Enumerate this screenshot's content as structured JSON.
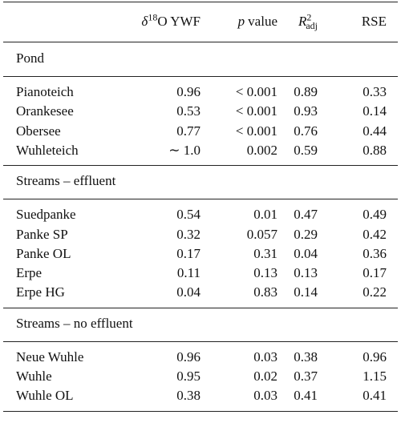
{
  "table": {
    "header": {
      "col1": {
        "italic": "δ",
        "sup": "18",
        "rest": "O YWF"
      },
      "col2": {
        "italic": "p",
        "rest": "value"
      },
      "col3": {
        "italic": "R",
        "sup": "2",
        "sub": "adj"
      },
      "col4": "RSE"
    },
    "groups": [
      {
        "title": "Pond",
        "rows": [
          [
            "Pianoteich",
            "0.96",
            "< 0.001",
            "0.89",
            "0.33"
          ],
          [
            "Orankesee",
            "0.53",
            "< 0.001",
            "0.93",
            "0.14"
          ],
          [
            "Obersee",
            "0.77",
            "< 0.001",
            "0.76",
            "0.44"
          ],
          [
            "Wuhleteich",
            "∼ 1.0",
            "0.002",
            "0.59",
            "0.88"
          ]
        ]
      },
      {
        "title": "Streams – effluent",
        "rows": [
          [
            "Suedpanke",
            "0.54",
            "0.01",
            "0.47",
            "0.49"
          ],
          [
            "Panke SP",
            "0.32",
            "0.057",
            "0.29",
            "0.42"
          ],
          [
            "Panke OL",
            "0.17",
            "0.31",
            "0.04",
            "0.36"
          ],
          [
            "Erpe",
            "0.11",
            "0.13",
            "0.13",
            "0.17"
          ],
          [
            "Erpe HG",
            "0.04",
            "0.83",
            "0.14",
            "0.22"
          ]
        ]
      },
      {
        "title": "Streams – no effluent",
        "rows": [
          [
            "Neue Wuhle",
            "0.96",
            "0.03",
            "0.38",
            "0.96"
          ],
          [
            "Wuhle",
            "0.95",
            "0.02",
            "0.37",
            "1.15"
          ],
          [
            "Wuhle OL",
            "0.38",
            "0.03",
            "0.41",
            "0.41"
          ]
        ]
      }
    ]
  }
}
